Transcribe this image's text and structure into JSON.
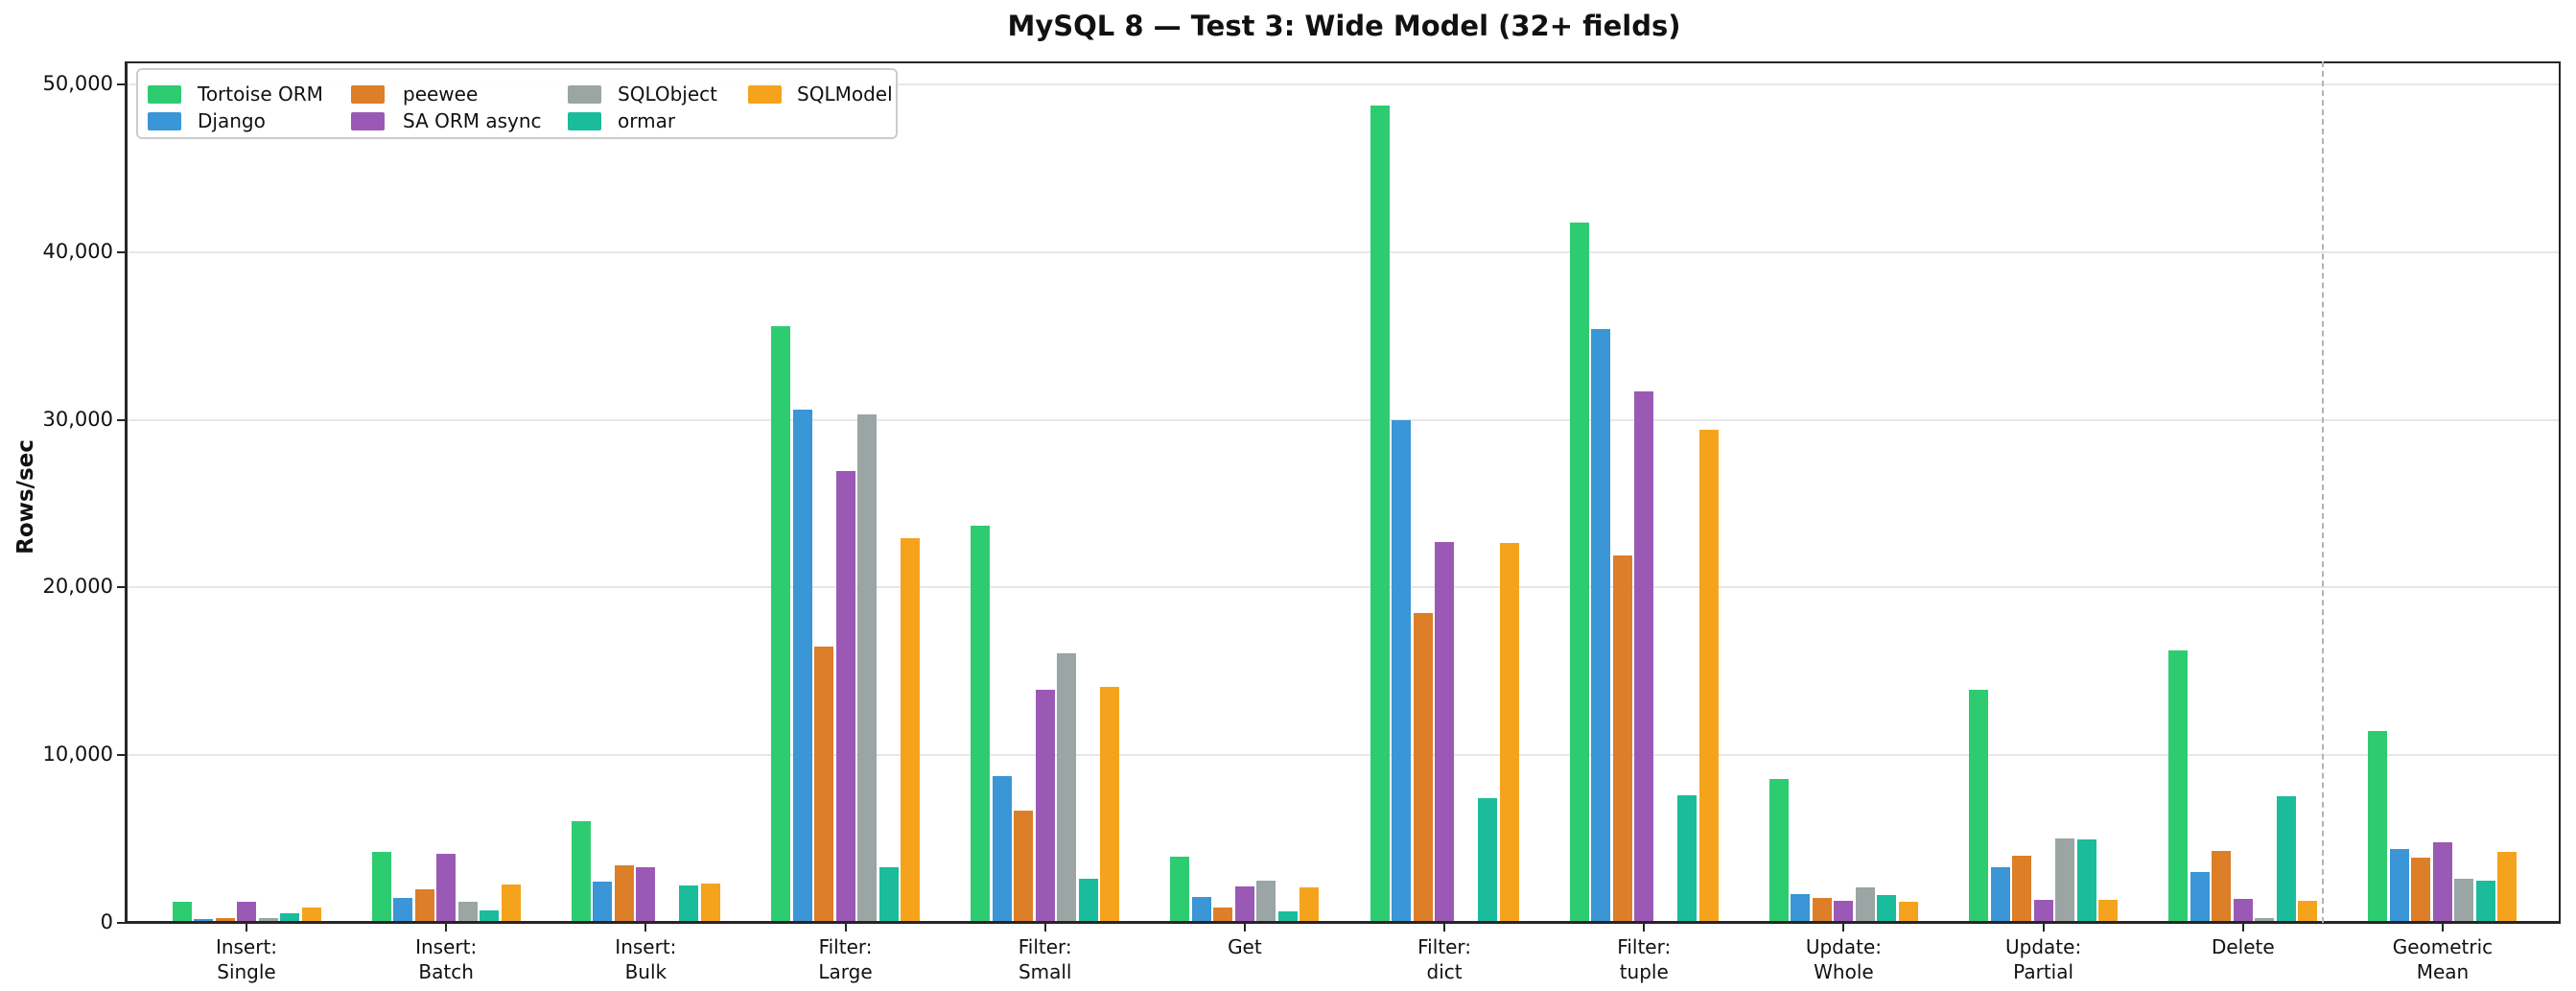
{
  "title": "MySQL 8 — Test 3: Wide Model (32+ fields)",
  "chart_data": {
    "type": "bar",
    "title": "MySQL 8 — Test 3: Wide Model (32+ fields)",
    "xlabel": "",
    "ylabel": "Rows/sec",
    "ylim": [
      0,
      51400
    ],
    "grid": "horizontal-light",
    "legend_position": "upper-left",
    "yticks": [
      {
        "value": 0,
        "label": "0"
      },
      {
        "value": 10000,
        "label": "10,000"
      },
      {
        "value": 20000,
        "label": "20,000"
      },
      {
        "value": 30000,
        "label": "30,000"
      },
      {
        "value": 40000,
        "label": "40,000"
      },
      {
        "value": 50000,
        "label": "50,000"
      }
    ],
    "categories": [
      "Insert:\nSingle",
      "Insert:\nBatch",
      "Insert:\nBulk",
      "Filter:\nLarge",
      "Filter:\nSmall",
      "Get",
      "Filter:\ndict",
      "Filter:\ntuple",
      "Update:\nWhole",
      "Update:\nPartial",
      "Delete",
      "Geometric\nMean"
    ],
    "separator_before_last_category": true,
    "series": [
      {
        "name": "Tortoise ORM",
        "color": "#2ecc71",
        "values": [
          1230,
          4250,
          6050,
          35600,
          23700,
          3920,
          48730,
          41740,
          8570,
          13890,
          16240,
          11450
        ]
      },
      {
        "name": "Django",
        "color": "#3a96d6",
        "values": [
          240,
          1460,
          2480,
          30580,
          8740,
          1520,
          29990,
          35440,
          1730,
          3300,
          3050,
          4380
        ]
      },
      {
        "name": "peewee",
        "color": "#dd7e28",
        "values": [
          275,
          2000,
          3410,
          16450,
          6700,
          890,
          18480,
          21900,
          1460,
          4020,
          4290,
          3870
        ]
      },
      {
        "name": "SA ORM async",
        "color": "#9b59b6",
        "values": [
          1230,
          4100,
          3300,
          26960,
          13890,
          2190,
          22720,
          31720,
          1310,
          1370,
          1420,
          4830
        ]
      },
      {
        "name": "SQLObject",
        "color": "#9aa5a4",
        "values": [
          290,
          1270,
          0,
          30340,
          16100,
          2530,
          0,
          0,
          2110,
          5010,
          280,
          2630
        ]
      },
      {
        "name": "ormar",
        "color": "#1abc9c",
        "values": [
          600,
          755,
          2230,
          3300,
          2630,
          715,
          7420,
          7590,
          1650,
          4960,
          7530,
          2530
        ]
      },
      {
        "name": "SQLModel",
        "color": "#f5a31d",
        "values": [
          930,
          2280,
          2320,
          22930,
          14080,
          2090,
          22680,
          29400,
          1270,
          1385,
          1330,
          4230
        ]
      }
    ]
  }
}
